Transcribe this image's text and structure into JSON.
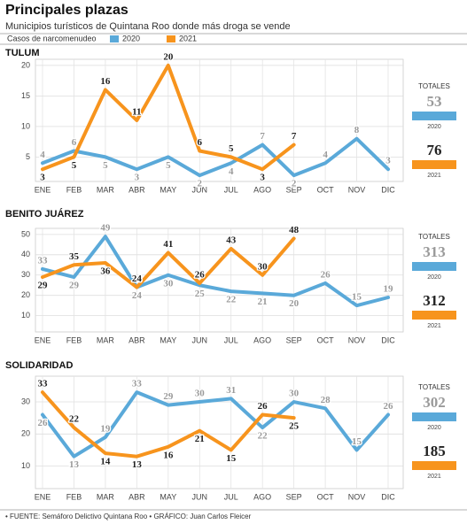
{
  "header": {
    "title": "Principales plazas",
    "subtitle": "Municipios turísticos de Quintana Roo donde más droga se vende",
    "legend_label": "Casos de narcomenudeo",
    "source": "• FUENTE: Semáforo Delictivo Quintana Roo • GRÁFICO: Juan Carlos Fleicer"
  },
  "chart_data": [
    {
      "type": "line",
      "title": "TULUM",
      "totals_title": "TOTALES",
      "categories": [
        "ENE",
        "FEB",
        "MAR",
        "ABR",
        "MAY",
        "JUN",
        "JUL",
        "AGO",
        "SEP",
        "OCT",
        "NOV",
        "DIC"
      ],
      "series": [
        {
          "name": "2020",
          "color": "#5aa9d9",
          "total": 53,
          "values": [
            4,
            6,
            5,
            3,
            5,
            2,
            4,
            7,
            2,
            4,
            8,
            3
          ]
        },
        {
          "name": "2021",
          "color": "#f7941d",
          "total": 76,
          "values": [
            3,
            5,
            16,
            11,
            20,
            6,
            5,
            3,
            7,
            null,
            null,
            null
          ]
        }
      ],
      "ylim": [
        1,
        21
      ],
      "yticks": [
        5,
        10,
        15,
        20
      ],
      "grid": true
    },
    {
      "type": "line",
      "title": "BENITO JUÁREZ",
      "totals_title": "TOTALES",
      "categories": [
        "ENE",
        "FEB",
        "MAR",
        "ABR",
        "MAY",
        "JUN",
        "JUL",
        "AGO",
        "SEP",
        "OCT",
        "NOV",
        "DIC"
      ],
      "series": [
        {
          "name": "2020",
          "color": "#5aa9d9",
          "total": 313,
          "values": [
            33,
            29,
            49,
            24,
            30,
            25,
            22,
            21,
            20,
            26,
            15,
            19
          ]
        },
        {
          "name": "2021",
          "color": "#f7941d",
          "total": 312,
          "values": [
            29,
            35,
            36,
            24,
            41,
            26,
            43,
            30,
            48,
            null,
            null,
            null
          ]
        }
      ],
      "ylim": [
        2,
        53
      ],
      "yticks": [
        10,
        20,
        30,
        40,
        50
      ],
      "grid": true
    },
    {
      "type": "line",
      "title": "SOLIDARIDAD",
      "totals_title": "TOTALES",
      "categories": [
        "ENE",
        "FEB",
        "MAR",
        "ABR",
        "MAY",
        "JUN",
        "JUL",
        "AGO",
        "SEP",
        "OCT",
        "NOV",
        "DIC"
      ],
      "series": [
        {
          "name": "2020",
          "color": "#5aa9d9",
          "total": 302,
          "values": [
            26,
            13,
            19,
            33,
            29,
            30,
            31,
            22,
            30,
            28,
            15,
            26
          ]
        },
        {
          "name": "2021",
          "color": "#f7941d",
          "total": 185,
          "values": [
            33,
            22,
            14,
            13,
            16,
            21,
            15,
            26,
            25,
            null,
            null,
            null
          ]
        }
      ],
      "ylim": [
        3,
        38
      ],
      "yticks": [
        10,
        20,
        30
      ],
      "grid": true
    }
  ]
}
